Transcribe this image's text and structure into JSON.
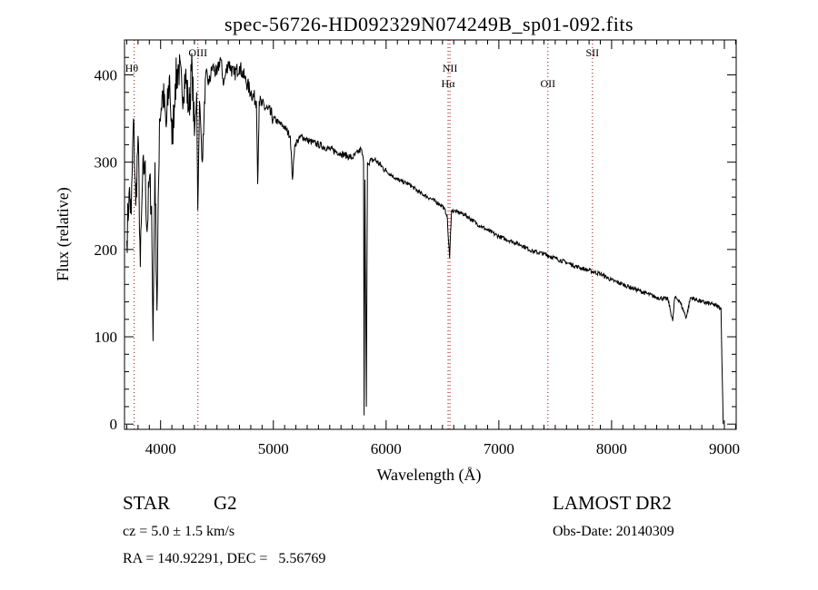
{
  "chart_data": {
    "type": "line",
    "title": "spec-56726-HD092329N074249B_sp01-092.fits",
    "xlabel": "Wavelength (Å)",
    "ylabel": "Flux (relative)",
    "xlim": [
      3680,
      9105
    ],
    "ylim": [
      -6,
      440
    ],
    "xticks": [
      4000,
      5000,
      6000,
      7000,
      8000,
      9000
    ],
    "yticks": [
      0,
      100,
      200,
      300,
      400
    ],
    "grid": false,
    "line_color": "#000000",
    "marker_line_color": "#a00000",
    "lines": [
      {
        "label": "Hθ",
        "wavelength": 3766,
        "label_row": "upper"
      },
      {
        "label": "OIII",
        "wavelength": 4331,
        "label_row": "top"
      },
      {
        "label": "NII",
        "wavelength": 6566,
        "label_row": "upper"
      },
      {
        "label": "Hα",
        "wavelength": 6550,
        "label_row": "lower"
      },
      {
        "label": "OII",
        "wavelength": 7435,
        "label_row": "lower"
      },
      {
        "label": "SII",
        "wavelength": 7830,
        "label_row": "top"
      }
    ],
    "series": [
      {
        "name": "flux",
        "points": [
          [
            3700,
            210
          ],
          [
            3720,
            265
          ],
          [
            3740,
            240
          ],
          [
            3760,
            350
          ],
          [
            3780,
            250
          ],
          [
            3800,
            330
          ],
          [
            3820,
            180
          ],
          [
            3840,
            280
          ],
          [
            3860,
            300
          ],
          [
            3880,
            220
          ],
          [
            3900,
            280
          ],
          [
            3920,
            250
          ],
          [
            3933,
            95
          ],
          [
            3950,
            300
          ],
          [
            3968,
            130
          ],
          [
            3990,
            350
          ],
          [
            4020,
            380
          ],
          [
            4050,
            340
          ],
          [
            4080,
            400
          ],
          [
            4101,
            320
          ],
          [
            4130,
            390
          ],
          [
            4160,
            410
          ],
          [
            4190,
            380
          ],
          [
            4220,
            400
          ],
          [
            4250,
            360
          ],
          [
            4280,
            410
          ],
          [
            4300,
            330
          ],
          [
            4320,
            380
          ],
          [
            4330,
            245
          ],
          [
            4345,
            370
          ],
          [
            4370,
            300
          ],
          [
            4400,
            400
          ],
          [
            4430,
            390
          ],
          [
            4460,
            410
          ],
          [
            4500,
            400
          ],
          [
            4530,
            420
          ],
          [
            4560,
            390
          ],
          [
            4600,
            415
          ],
          [
            4650,
            400
          ],
          [
            4700,
            410
          ],
          [
            4750,
            395
          ],
          [
            4800,
            380
          ],
          [
            4850,
            370
          ],
          [
            4861,
            275
          ],
          [
            4875,
            370
          ],
          [
            4900,
            365
          ],
          [
            4950,
            360
          ],
          [
            5000,
            350
          ],
          [
            5050,
            345
          ],
          [
            5100,
            340
          ],
          [
            5150,
            330
          ],
          [
            5170,
            280
          ],
          [
            5190,
            320
          ],
          [
            5250,
            330
          ],
          [
            5300,
            325
          ],
          [
            5400,
            320
          ],
          [
            5500,
            315
          ],
          [
            5600,
            310
          ],
          [
            5700,
            305
          ],
          [
            5780,
            315
          ],
          [
            5800,
            300
          ],
          [
            5805,
            10
          ],
          [
            5812,
            280
          ],
          [
            5825,
            20
          ],
          [
            5835,
            300
          ],
          [
            5900,
            303
          ],
          [
            6000,
            290
          ],
          [
            6100,
            280
          ],
          [
            6200,
            275
          ],
          [
            6300,
            265
          ],
          [
            6400,
            258
          ],
          [
            6500,
            250
          ],
          [
            6540,
            240
          ],
          [
            6563,
            190
          ],
          [
            6580,
            245
          ],
          [
            6700,
            240
          ],
          [
            6800,
            230
          ],
          [
            6900,
            222
          ],
          [
            7000,
            215
          ],
          [
            7100,
            210
          ],
          [
            7200,
            205
          ],
          [
            7300,
            198
          ],
          [
            7400,
            195
          ],
          [
            7500,
            190
          ],
          [
            7600,
            185
          ],
          [
            7700,
            180
          ],
          [
            7800,
            176
          ],
          [
            7900,
            172
          ],
          [
            8000,
            165
          ],
          [
            8100,
            160
          ],
          [
            8200,
            155
          ],
          [
            8300,
            150
          ],
          [
            8400,
            145
          ],
          [
            8500,
            143
          ],
          [
            8542,
            118
          ],
          [
            8560,
            145
          ],
          [
            8600,
            142
          ],
          [
            8662,
            122
          ],
          [
            8700,
            145
          ],
          [
            8800,
            140
          ],
          [
            8900,
            137
          ],
          [
            8970,
            133
          ],
          [
            8990,
            0
          ]
        ]
      }
    ]
  },
  "info": {
    "class": "STAR",
    "subclass": "G2",
    "survey": "LAMOST DR2",
    "cz": "cz = 5.0 ± 1.5 km/s",
    "obs_date": "Obs-Date: 20140309",
    "coords": "RA = 140.92291, DEC =   5.56769"
  }
}
